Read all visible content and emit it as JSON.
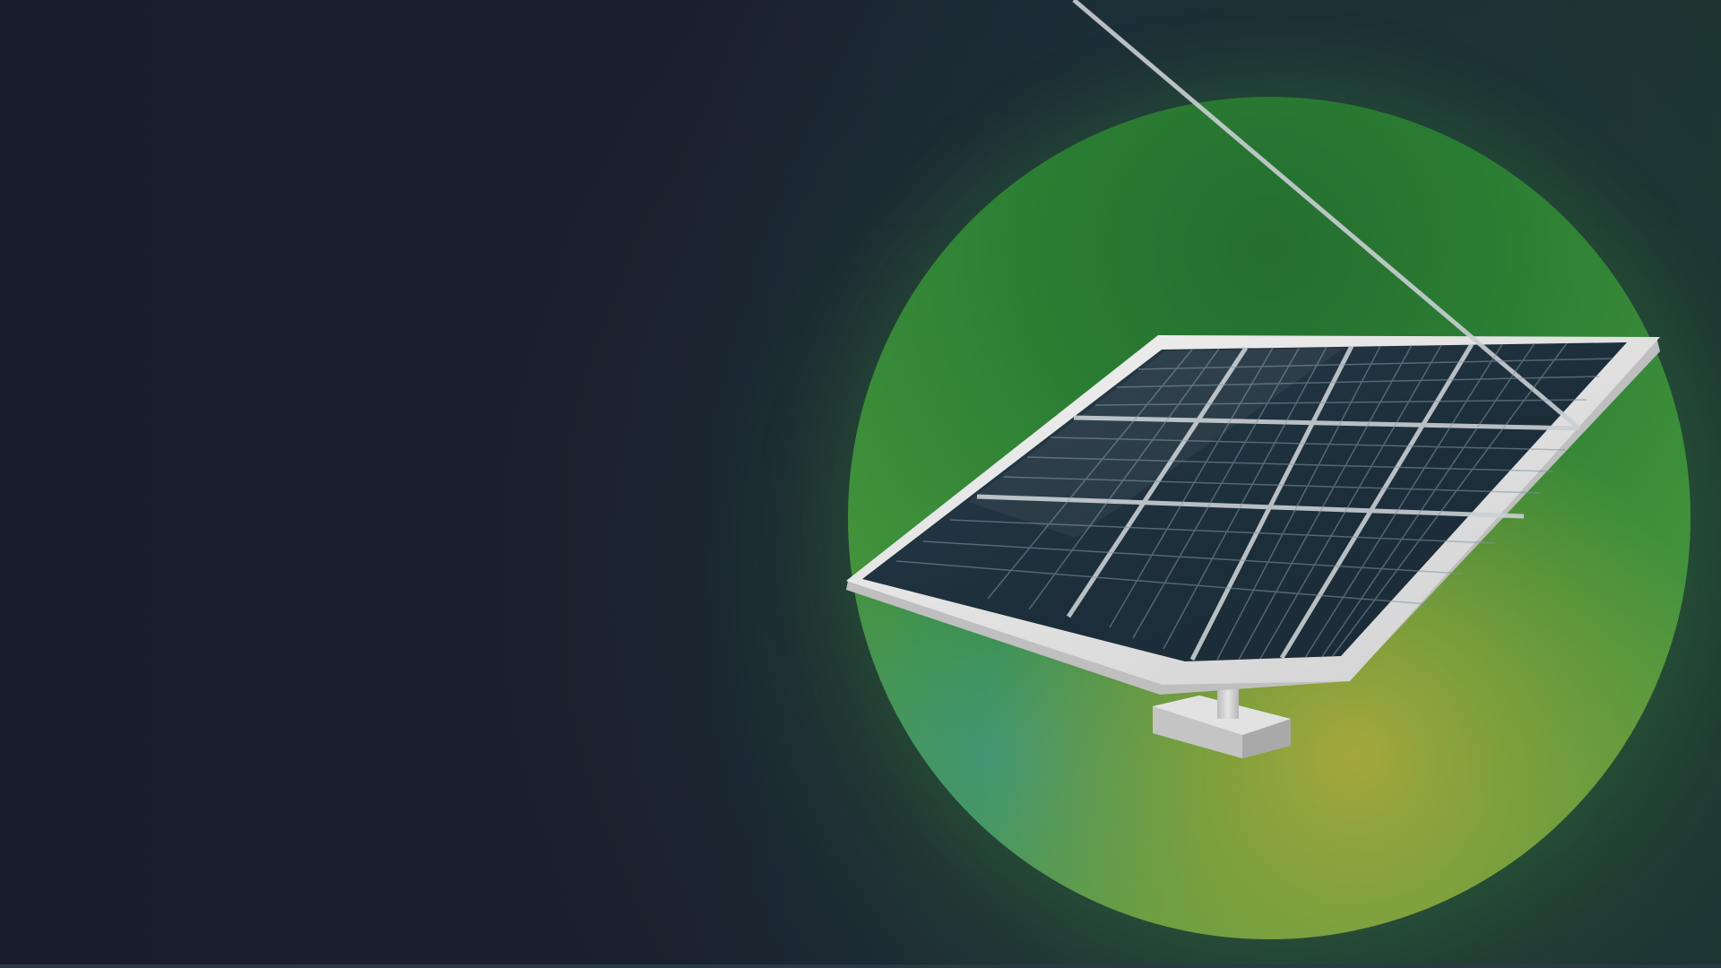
{
  "scene": {
    "subject": "solar-panel",
    "colors": {
      "background": "#191c2b",
      "glow_green": "#2b7d33",
      "glow_yellow": "#9aa83c",
      "glow_teal": "#3f9a86",
      "panel_cell": "#1f3340",
      "panel_frame": "#e6e6e6",
      "stand": "#cfcfcf"
    }
  }
}
